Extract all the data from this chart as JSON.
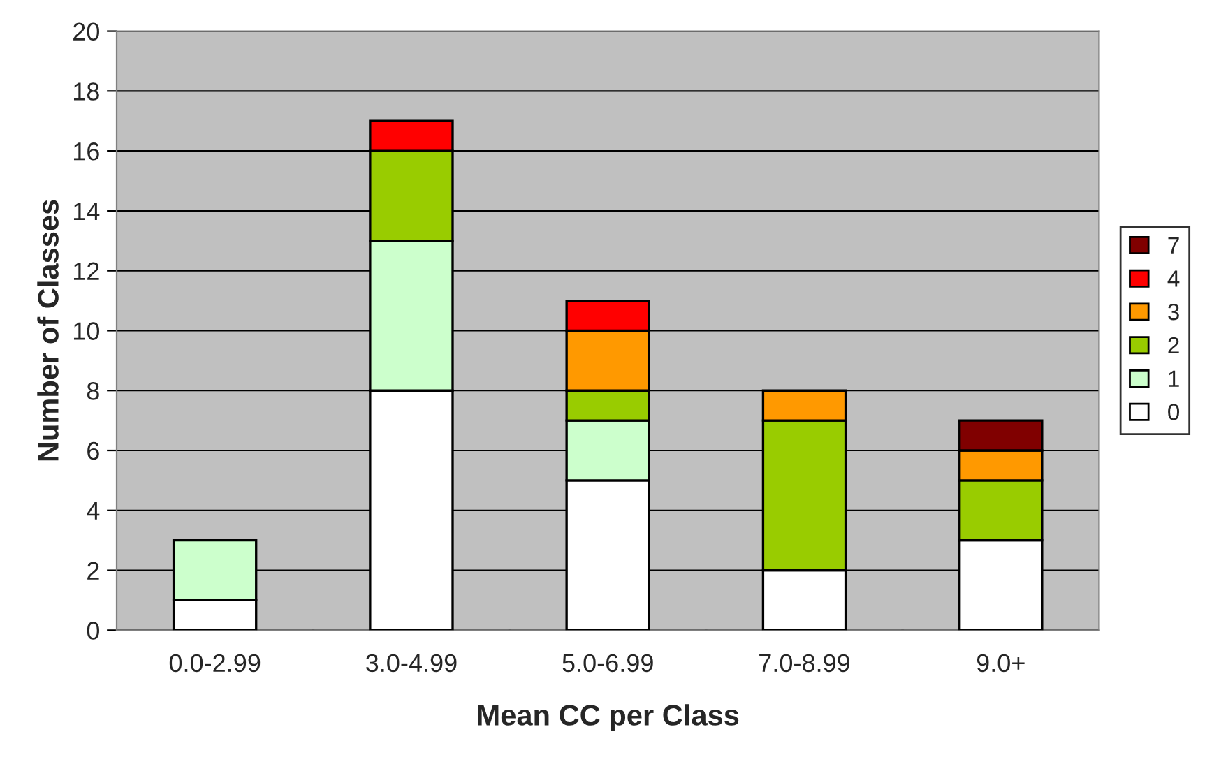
{
  "chart_data": {
    "type": "bar",
    "stacked": true,
    "xlabel": "Mean CC per Class",
    "ylabel": "Number of Classes",
    "categories": [
      "0.0-2.99",
      "3.0-4.99",
      "5.0-6.99",
      "7.0-8.99",
      "9.0+"
    ],
    "series": [
      {
        "name": "0",
        "color": "#ffffff",
        "values": [
          1,
          8,
          5,
          2,
          3
        ]
      },
      {
        "name": "1",
        "color": "#ccffcc",
        "values": [
          2,
          5,
          2,
          0,
          0
        ]
      },
      {
        "name": "2",
        "color": "#99cc00",
        "values": [
          0,
          3,
          1,
          5,
          2
        ]
      },
      {
        "name": "3",
        "color": "#ff9900",
        "values": [
          0,
          0,
          2,
          1,
          1
        ]
      },
      {
        "name": "4",
        "color": "#ff0000",
        "values": [
          0,
          1,
          1,
          0,
          0
        ]
      },
      {
        "name": "7",
        "color": "#800000",
        "values": [
          0,
          0,
          0,
          0,
          1
        ]
      }
    ],
    "ylim": [
      0,
      20
    ],
    "yticks": [
      0,
      2,
      4,
      6,
      8,
      10,
      12,
      14,
      16,
      18,
      20
    ],
    "grid": "y",
    "legend": "right"
  }
}
